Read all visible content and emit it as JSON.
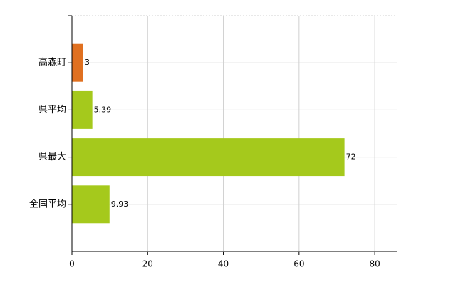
{
  "chart_data": {
    "type": "hbar",
    "categories": [
      "高森町",
      "県平均",
      "県最大",
      "全国平均"
    ],
    "values": [
      3,
      5.39,
      72,
      9.93
    ],
    "colors": [
      "#e07020",
      "#a5c91c",
      "#a5c91c",
      "#a5c91c"
    ],
    "xlim": [
      0,
      86
    ],
    "xticks": [
      0,
      20,
      40,
      60,
      80
    ],
    "grid": true
  }
}
